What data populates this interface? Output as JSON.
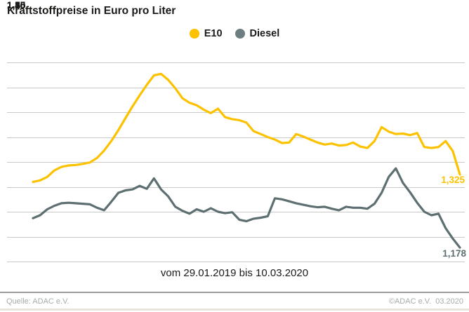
{
  "title": "Kraftstoffpreise in Euro pro Liter",
  "legend": [
    {
      "label": "E10",
      "color": "#fcc200"
    },
    {
      "label": "Diesel",
      "color": "#6e7e80"
    }
  ],
  "chart_data": {
    "type": "line",
    "title": "Kraftstoffpreise in Euro pro Liter",
    "x_range_label": "vom 29.01.2019 bis 10.03.2020",
    "x_start": "29.01.2019",
    "x_end": "10.03.2020",
    "ylim": [
      1.15,
      1.55
    ],
    "ytick_step": 0.05,
    "ytick_labels": [
      "1,55",
      "1,50",
      "1,45",
      "1,40",
      "1,35",
      "1,30",
      "1,25",
      "1,20",
      "1,15"
    ],
    "grid": true,
    "legend_position": "top-center",
    "unit": "Euro pro Liter",
    "series": [
      {
        "name": "E10",
        "color": "#fcc200",
        "end_label": "1,325",
        "end_value": 1.325,
        "values": [
          1.31,
          1.313,
          1.32,
          1.333,
          1.34,
          1.343,
          1.344,
          1.346,
          1.349,
          1.358,
          1.373,
          1.392,
          1.414,
          1.438,
          1.462,
          1.484,
          1.505,
          1.524,
          1.527,
          1.515,
          1.498,
          1.478,
          1.469,
          1.464,
          1.455,
          1.448,
          1.457,
          1.44,
          1.436,
          1.434,
          1.429,
          1.412,
          1.406,
          1.4,
          1.395,
          1.388,
          1.389,
          1.406,
          1.401,
          1.395,
          1.389,
          1.385,
          1.387,
          1.383,
          1.384,
          1.389,
          1.381,
          1.378,
          1.392,
          1.42,
          1.411,
          1.406,
          1.407,
          1.404,
          1.408,
          1.38,
          1.378,
          1.38,
          1.392,
          1.372,
          1.325
        ]
      },
      {
        "name": "Diesel",
        "color": "#5d6f71",
        "end_label": "1,178",
        "end_value": 1.178,
        "values": [
          1.237,
          1.243,
          1.255,
          1.262,
          1.267,
          1.268,
          1.267,
          1.266,
          1.265,
          1.258,
          1.253,
          1.27,
          1.288,
          1.293,
          1.295,
          1.302,
          1.296,
          1.317,
          1.295,
          1.281,
          1.26,
          1.252,
          1.246,
          1.255,
          1.25,
          1.257,
          1.25,
          1.247,
          1.249,
          1.234,
          1.231,
          1.236,
          1.238,
          1.241,
          1.277,
          1.275,
          1.271,
          1.267,
          1.264,
          1.261,
          1.259,
          1.26,
          1.256,
          1.253,
          1.26,
          1.258,
          1.258,
          1.256,
          1.266,
          1.288,
          1.32,
          1.337,
          1.308,
          1.289,
          1.268,
          1.25,
          1.243,
          1.246,
          1.217,
          1.196,
          1.178
        ]
      }
    ]
  },
  "footer": {
    "source": "Quelle: ADAC e.V.",
    "copyright": "©ADAC e.V.  03.2020"
  }
}
